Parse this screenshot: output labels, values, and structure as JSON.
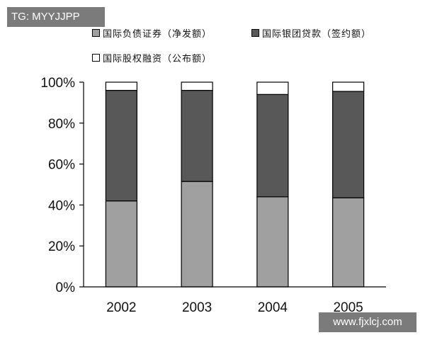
{
  "watermarks": {
    "top_left": "TG: MYYJJPP",
    "bottom_right": "www.fjxlcj.com"
  },
  "chart_data": {
    "type": "bar",
    "stacked": true,
    "categories": [
      "2002",
      "2003",
      "2004",
      "2005"
    ],
    "series": [
      {
        "name": "国际负债证券（净发额）",
        "color": "#a0a0a0",
        "values": [
          42,
          51.5,
          44,
          43.5
        ]
      },
      {
        "name": "国际银团贷款（签约额）",
        "color": "#585858",
        "values": [
          54,
          44.5,
          50,
          52
        ]
      },
      {
        "name": "国际股权融资（公布额）",
        "color": "#ffffff",
        "values": [
          4,
          4,
          6,
          4.5
        ]
      }
    ],
    "ylim": [
      0,
      100
    ],
    "yticks": [
      "0%",
      "20%",
      "40%",
      "60%",
      "80%",
      "100%"
    ],
    "legend_position": "top",
    "grid": false
  }
}
